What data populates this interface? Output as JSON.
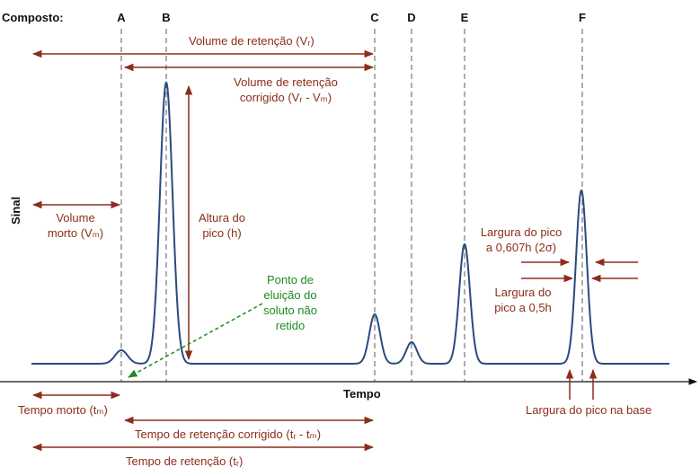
{
  "header": "Composto:",
  "compounds": [
    "A",
    "B",
    "C",
    "D",
    "E",
    "F"
  ],
  "axes": {
    "y": "Sinal",
    "x": "Tempo"
  },
  "labels": {
    "retention_volume": "Volume de retenção (Vᵣ)",
    "corrected_volume": [
      "Volume de retenção",
      "corrigido (Vᵣ - Vₘ)"
    ],
    "dead_volume": [
      "Volume",
      "morto (Vₘ)"
    ],
    "peak_height": [
      "Altura do",
      "pico (h)"
    ],
    "unretained_point": [
      "Ponto de",
      "eluição do",
      "soluto não",
      "retido"
    ],
    "width_0607": [
      "Largura do pico",
      "a 0,607h (2σ)"
    ],
    "width_05": [
      "Largura do",
      "pico a 0,5h"
    ],
    "dead_time": "Tempo morto (tₘ)",
    "corrected_time": "Tempo de retenção corrigido (tᵣ - tₘ)",
    "retention_time": "Tempo de retenção (tᵣ)",
    "base_width": "Largura do pico na base"
  }
}
